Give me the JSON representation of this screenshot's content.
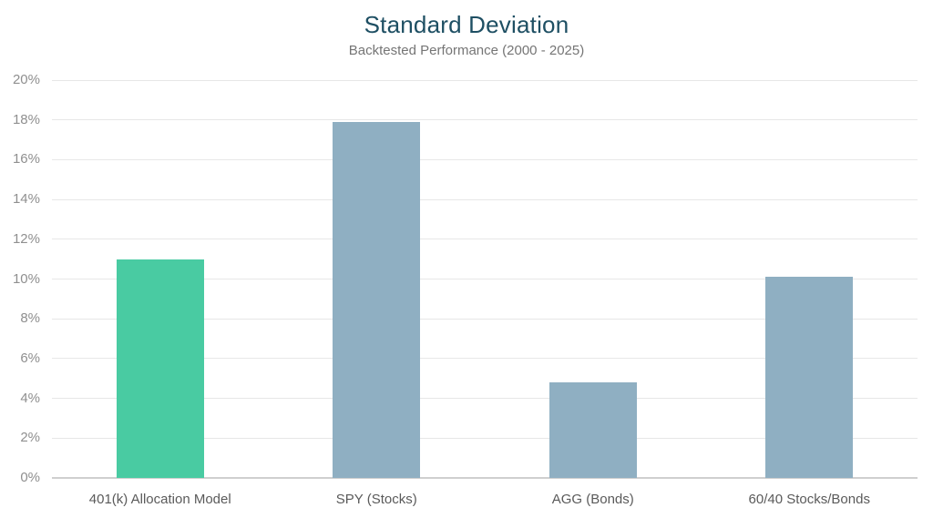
{
  "chart_data": {
    "type": "bar",
    "title": "Standard Deviation",
    "subtitle": "Backtested Performance (2000 - 2025)",
    "categories": [
      "401(k) Allocation Model",
      "SPY (Stocks)",
      "AGG (Bonds)",
      "60/40 Stocks/Bonds"
    ],
    "values": [
      11.0,
      17.9,
      4.8,
      10.1
    ],
    "bar_colors": [
      "#49cba2",
      "#8fafc2",
      "#8fafc2",
      "#8fafc2"
    ],
    "ylim": [
      0,
      20
    ],
    "y_tick_step": 2,
    "y_tick_labels": [
      "0%",
      "2%",
      "4%",
      "6%",
      "8%",
      "10%",
      "12%",
      "14%",
      "16%",
      "18%",
      "20%"
    ],
    "grid": true,
    "legend": "none",
    "xlabel": "",
    "ylabel": ""
  },
  "colors": {
    "title": "#1e4f63",
    "subtitle": "#757575",
    "axis_label": "#8f8f8f",
    "category_label": "#5a5a5a",
    "grid": "#e7e7e7",
    "baseline": "#cfcfcf",
    "highlight_bar": "#49cba2",
    "default_bar": "#8fafc2",
    "background": "#ffffff"
  }
}
